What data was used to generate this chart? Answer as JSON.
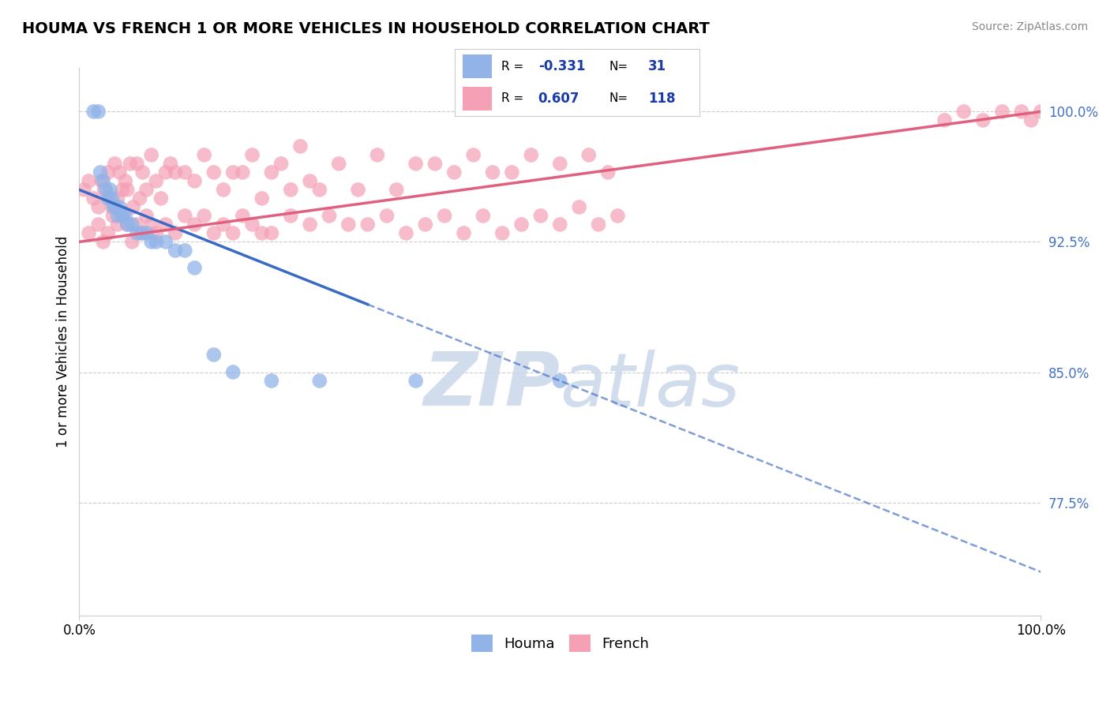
{
  "title": "HOUMA VS FRENCH 1 OR MORE VEHICLES IN HOUSEHOLD CORRELATION CHART",
  "source_text": "Source: ZipAtlas.com",
  "ylabel": "1 or more Vehicles in Household",
  "xlim": [
    0.0,
    100.0
  ],
  "ylim": [
    71.0,
    102.5
  ],
  "yticks": [
    77.5,
    85.0,
    92.5,
    100.0
  ],
  "xticks": [
    0.0,
    100.0
  ],
  "xticklabels": [
    "0.0%",
    "100.0%"
  ],
  "yticklabels": [
    "77.5%",
    "85.0%",
    "92.5%",
    "100.0%"
  ],
  "houma_R": -0.331,
  "houma_N": 31,
  "french_R": 0.607,
  "french_N": 118,
  "houma_color": "#91b3e8",
  "french_color": "#f5a0b5",
  "houma_line_color": "#3a6bc4",
  "french_line_color": "#e06080",
  "background_color": "#ffffff",
  "watermark_color": "#ccd9ec",
  "legend_R_color": "#1a3aaa",
  "houma_x": [
    1.5,
    2.0,
    2.2,
    2.5,
    2.8,
    3.0,
    3.2,
    3.4,
    3.6,
    3.8,
    4.0,
    4.2,
    4.5,
    4.8,
    5.0,
    5.5,
    6.0,
    6.5,
    7.0,
    7.5,
    8.0,
    9.0,
    10.0,
    11.0,
    12.0,
    14.0,
    16.0,
    20.0,
    25.0,
    35.0,
    50.0
  ],
  "houma_y": [
    100.0,
    100.0,
    96.5,
    96.0,
    95.5,
    95.0,
    95.5,
    95.0,
    94.5,
    94.5,
    94.0,
    94.5,
    94.0,
    94.0,
    93.5,
    93.5,
    93.0,
    93.0,
    93.0,
    92.5,
    92.5,
    92.5,
    92.0,
    92.0,
    91.0,
    86.0,
    85.0,
    84.5,
    84.5,
    84.5,
    84.5
  ],
  "french_x": [
    0.5,
    1.0,
    1.5,
    2.0,
    2.3,
    2.6,
    3.0,
    3.2,
    3.4,
    3.7,
    4.0,
    4.2,
    4.5,
    4.8,
    5.0,
    5.3,
    5.6,
    6.0,
    6.3,
    6.6,
    7.0,
    7.5,
    8.0,
    8.5,
    9.0,
    9.5,
    10.0,
    11.0,
    12.0,
    13.0,
    14.0,
    15.0,
    16.0,
    17.0,
    18.0,
    19.0,
    20.0,
    21.0,
    22.0,
    23.0,
    24.0,
    25.0,
    27.0,
    29.0,
    31.0,
    33.0,
    35.0,
    37.0,
    39.0,
    41.0,
    43.0,
    45.0,
    47.0,
    50.0,
    53.0,
    55.0
  ],
  "french_y": [
    95.5,
    96.0,
    95.0,
    94.5,
    96.0,
    95.5,
    96.5,
    95.0,
    94.5,
    97.0,
    95.0,
    96.5,
    95.5,
    96.0,
    95.5,
    97.0,
    94.5,
    97.0,
    95.0,
    96.5,
    95.5,
    97.5,
    96.0,
    95.0,
    96.5,
    97.0,
    96.5,
    96.5,
    96.0,
    97.5,
    96.5,
    95.5,
    96.5,
    96.5,
    97.5,
    95.0,
    96.5,
    97.0,
    95.5,
    98.0,
    96.0,
    95.5,
    97.0,
    95.5,
    97.5,
    95.5,
    97.0,
    97.0,
    96.5,
    97.5,
    96.5,
    96.5,
    97.5,
    97.0,
    97.5,
    96.5
  ],
  "french_x2": [
    1.0,
    2.0,
    2.5,
    3.0,
    3.5,
    4.0,
    4.5,
    5.0,
    5.5,
    6.0,
    6.5,
    7.0,
    7.5,
    8.0,
    9.0,
    10.0,
    11.0,
    12.0,
    13.0,
    14.0,
    15.0,
    16.0,
    17.0,
    18.0,
    19.0,
    20.0,
    22.0,
    24.0,
    26.0,
    28.0,
    30.0,
    32.0,
    34.0,
    36.0,
    38.0,
    40.0,
    42.0,
    44.0,
    46.0,
    48.0,
    50.0,
    52.0,
    54.0,
    56.0,
    90.0,
    92.0,
    94.0,
    96.0,
    98.0,
    99.0,
    100.0
  ],
  "french_y2": [
    93.0,
    93.5,
    92.5,
    93.0,
    94.0,
    93.5,
    94.0,
    93.5,
    92.5,
    93.5,
    93.0,
    94.0,
    93.5,
    93.0,
    93.5,
    93.0,
    94.0,
    93.5,
    94.0,
    93.0,
    93.5,
    93.0,
    94.0,
    93.5,
    93.0,
    93.0,
    94.0,
    93.5,
    94.0,
    93.5,
    93.5,
    94.0,
    93.0,
    93.5,
    94.0,
    93.0,
    94.0,
    93.0,
    93.5,
    94.0,
    93.5,
    94.5,
    93.5,
    94.0,
    99.5,
    100.0,
    99.5,
    100.0,
    100.0,
    99.5,
    100.0
  ],
  "houma_line_x0": 0.0,
  "houma_line_y0": 95.5,
  "houma_line_x1": 100.0,
  "houma_line_y1": 73.5,
  "houma_solid_end_x": 30.0,
  "french_line_x0": 0.0,
  "french_line_y0": 92.5,
  "french_line_x1": 100.0,
  "french_line_y1": 100.0
}
